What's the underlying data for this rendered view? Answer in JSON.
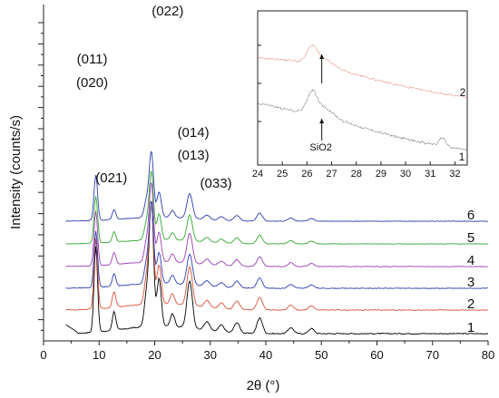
{
  "chart_data": [
    {
      "type": "line",
      "title": "",
      "xlabel": "2θ (°)",
      "ylabel": "Intensity (counts/s)",
      "xlim": [
        0,
        80
      ],
      "xticks": [
        0,
        10,
        20,
        30,
        40,
        50,
        60,
        70,
        80
      ],
      "xticklabels": [
        "0",
        "10",
        "20",
        "30",
        "40",
        "50",
        "60",
        "70",
        "80"
      ],
      "yticks_labeled": false,
      "grid": false,
      "peaks": [
        {
          "x": 9.4,
          "height": 1.0
        },
        {
          "x": 12.7,
          "height": 0.22
        },
        {
          "x": 18.5,
          "height": 0.35
        },
        {
          "x": 19.4,
          "height": 1.45
        },
        {
          "x": 20.8,
          "height": 0.55
        },
        {
          "x": 23.2,
          "height": 0.15
        },
        {
          "x": 26.3,
          "height": 0.55
        },
        {
          "x": 29.4,
          "height": 0.1
        },
        {
          "x": 32.0,
          "height": 0.08
        },
        {
          "x": 34.8,
          "height": 0.12
        },
        {
          "x": 38.9,
          "height": 0.18
        },
        {
          "x": 44.5,
          "height": 0.07
        },
        {
          "x": 48.2,
          "height": 0.06
        }
      ],
      "series": [
        {
          "name": "1",
          "color": "#000000",
          "offset": 0,
          "scale": 0.95
        },
        {
          "name": "2",
          "color": "#d9523b",
          "offset": 1,
          "scale": 0.78
        },
        {
          "name": "3",
          "color": "#2c3fb0",
          "offset": 2,
          "scale": 0.62
        },
        {
          "name": "4",
          "color": "#9b3fb5",
          "offset": 3,
          "scale": 0.6
        },
        {
          "name": "5",
          "color": "#33a833",
          "offset": 4,
          "scale": 0.52
        },
        {
          "name": "6",
          "color": "#2c3fb0",
          "offset": 5,
          "scale": 0.5
        }
      ],
      "annotations": [
        {
          "text": "(022)",
          "x": 19.4
        },
        {
          "text": "(011)",
          "x": 9.4
        },
        {
          "text": "(020)",
          "x": 9.4
        },
        {
          "text": "(021)",
          "x": 12.7
        },
        {
          "text": "(014)",
          "x": 26.3
        },
        {
          "text": "(013)",
          "x": 26.3
        },
        {
          "text": "(033)",
          "x": 29.4
        }
      ]
    },
    {
      "type": "line",
      "title": "",
      "xlabel": "",
      "ylabel": "",
      "xlim": [
        24,
        32.5
      ],
      "xticks": [
        24,
        25,
        26,
        27,
        28,
        29,
        30,
        31,
        32
      ],
      "xticklabels": [
        "24",
        "25",
        "26",
        "27",
        "28",
        "29",
        "30",
        "31",
        "32"
      ],
      "series": [
        {
          "name": "2",
          "color": "#d9523b"
        },
        {
          "name": "1",
          "color": "#333333"
        }
      ],
      "annotations": [
        {
          "text": "SiO2",
          "x": 26.6
        }
      ]
    }
  ]
}
